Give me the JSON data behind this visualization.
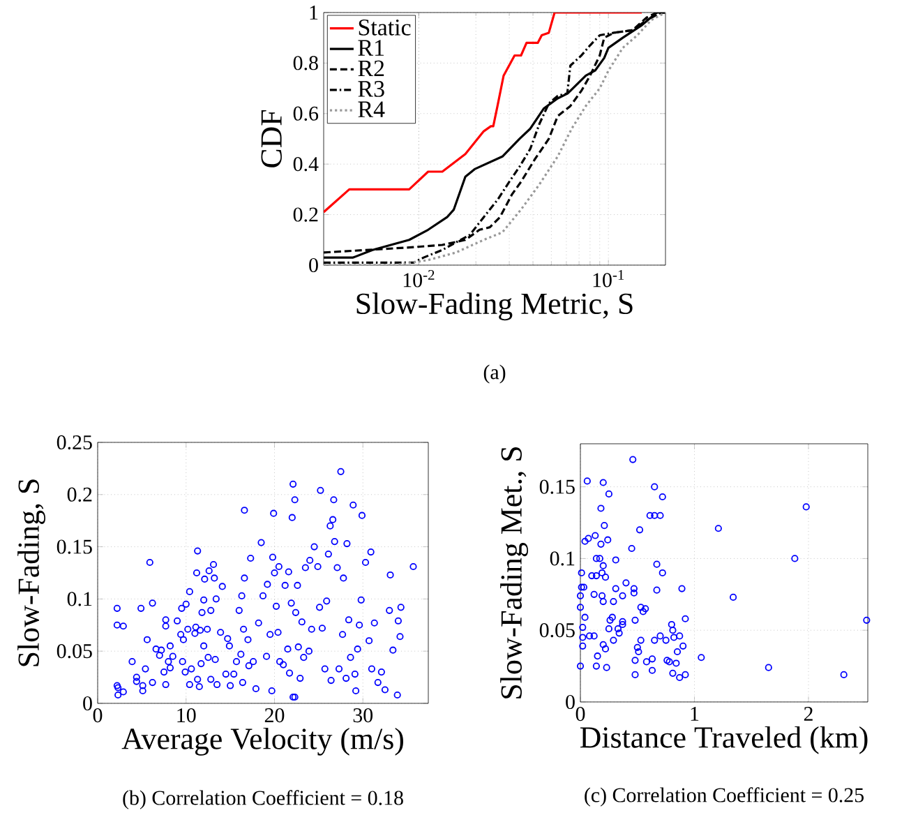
{
  "chart_data": [
    {
      "type": "line",
      "xlabel": "Slow-Fading Metric, S",
      "ylabel": "CDF",
      "log": "x",
      "xlim": [
        0.00315,
        0.2
      ],
      "ylim": [
        0,
        1
      ],
      "xticks": [
        {
          "value": 0.01,
          "label": "10$^{-2}$"
        },
        {
          "value": 0.1,
          "label": "10$^{-1}$"
        }
      ],
      "yticks": [
        0,
        0.2,
        0.4,
        0.6,
        0.8,
        1
      ],
      "grid": true,
      "legend": "top left",
      "annotations": [
        "(a)"
      ],
      "series": [
        {
          "name": "Static",
          "color": "#ff0000",
          "line_style": "solid",
          "x": [
            0.00315,
            0.0043,
            0.0089,
            0.0112,
            0.0133,
            0.0176,
            0.022,
            0.024,
            0.0247,
            0.026,
            0.028,
            0.032,
            0.0346,
            0.037,
            0.0424,
            0.0445,
            0.0485,
            0.052,
            0.15
          ],
          "values": [
            0.21,
            0.3,
            0.3,
            0.37,
            0.37,
            0.44,
            0.53,
            0.55,
            0.55,
            0.63,
            0.75,
            0.83,
            0.83,
            0.88,
            0.88,
            0.91,
            0.92,
            1,
            1
          ]
        },
        {
          "name": "R1",
          "color": "#000000",
          "line_style": "solid",
          "x": [
            0.00315,
            0.0045,
            0.0057,
            0.0089,
            0.0112,
            0.0141,
            0.0153,
            0.0176,
            0.0197,
            0.0276,
            0.034,
            0.0387,
            0.0456,
            0.054,
            0.061,
            0.076,
            0.085,
            0.095,
            0.1,
            0.119,
            0.15,
            0.18,
            0.2
          ],
          "values": [
            0.03,
            0.03,
            0.06,
            0.1,
            0.14,
            0.19,
            0.22,
            0.35,
            0.38,
            0.43,
            0.5,
            0.54,
            0.62,
            0.66,
            0.68,
            0.75,
            0.77,
            0.82,
            0.86,
            0.9,
            0.95,
            1,
            1
          ]
        },
        {
          "name": "R2",
          "color": "#000000",
          "line_style": "dashed",
          "x": [
            0.00315,
            0.0089,
            0.0133,
            0.0176,
            0.0209,
            0.0237,
            0.0268,
            0.031,
            0.0346,
            0.041,
            0.0485,
            0.054,
            0.063,
            0.072,
            0.08,
            0.09,
            0.095,
            0.107,
            0.134,
            0.159,
            0.18,
            0.2
          ],
          "values": [
            0.05,
            0.07,
            0.08,
            0.1,
            0.14,
            0.15,
            0.19,
            0.28,
            0.33,
            0.42,
            0.5,
            0.59,
            0.63,
            0.69,
            0.75,
            0.83,
            0.9,
            0.92,
            0.93,
            0.98,
            1,
            1
          ]
        },
        {
          "name": "R3",
          "color": "#000000",
          "line_style": "dashdot",
          "x": [
            0.00315,
            0.0094,
            0.0106,
            0.0133,
            0.0157,
            0.0186,
            0.022,
            0.0261,
            0.03,
            0.034,
            0.0387,
            0.0433,
            0.0485,
            0.054,
            0.0607,
            0.063,
            0.072,
            0.08,
            0.09,
            0.107,
            0.134,
            0.159,
            0.19,
            0.2
          ],
          "values": [
            0.01,
            0.01,
            0.03,
            0.06,
            0.09,
            0.12,
            0.19,
            0.26,
            0.33,
            0.39,
            0.46,
            0.56,
            0.64,
            0.67,
            0.68,
            0.79,
            0.83,
            0.87,
            0.91,
            0.92,
            0.93,
            0.97,
            1,
            1
          ]
        },
        {
          "name": "R4",
          "color": "#999999",
          "line_style": "dotted",
          "x": [
            0.00315,
            0.0075,
            0.0112,
            0.0157,
            0.022,
            0.0276,
            0.0346,
            0.0433,
            0.054,
            0.064,
            0.076,
            0.09,
            0.1,
            0.119,
            0.142,
            0.168,
            0.2
          ],
          "values": [
            0,
            0,
            0.02,
            0.05,
            0.1,
            0.13,
            0.22,
            0.32,
            0.43,
            0.54,
            0.63,
            0.7,
            0.77,
            0.86,
            0.91,
            0.97,
            1
          ]
        }
      ]
    },
    {
      "type": "scatter",
      "xlabel": "Average Velocity (m/s)",
      "ylabel": "Slow-Fading, S",
      "xlim": [
        0,
        37.4
      ],
      "ylim": [
        0,
        0.25
      ],
      "xticks": [
        0,
        10,
        20,
        30
      ],
      "yticks": [
        0,
        0.05,
        0.1,
        0.15,
        0.2,
        0.25
      ],
      "grid": true,
      "marker": "circle",
      "color": "#0000ff",
      "annotations": [
        "(b) Correlation Coefficient = 0.18"
      ],
      "x": [
        2.2,
        2.2,
        2.9,
        2.2,
        2.3,
        2.3,
        2.9,
        3.9,
        4.4,
        4.4,
        4.9,
        5.1,
        5.1,
        5.4,
        5.6,
        5.9,
        6.2,
        6.2,
        6.6,
        7.0,
        7.2,
        7.7,
        7.7,
        7.5,
        7.7,
        8.0,
        8.2,
        8.2,
        8.5,
        9.0,
        9.4,
        9.5,
        9.7,
        9.6,
        9.9,
        10.0,
        10.2,
        10.4,
        10.4,
        10.6,
        11.0,
        11.1,
        11.2,
        11.3,
        11.3,
        11.5,
        11.6,
        11.7,
        11.8,
        12.0,
        12.0,
        12.1,
        12.4,
        12.5,
        12.6,
        12.8,
        12.8,
        13.1,
        13.2,
        13.3,
        13.4,
        13.5,
        13.9,
        14.1,
        14.5,
        14.7,
        14.9,
        15.0,
        15.4,
        15.7,
        16.0,
        16.2,
        16.3,
        16.4,
        16.5,
        16.6,
        16.6,
        17.0,
        17.1,
        17.3,
        17.6,
        17.9,
        18.2,
        18.5,
        18.7,
        19.1,
        19.2,
        19.5,
        19.7,
        19.8,
        19.9,
        20.0,
        20.2,
        20.4,
        20.5,
        20.6,
        21.0,
        21.2,
        21.5,
        21.6,
        21.7,
        22.1,
        21.9,
        22.3,
        22.0,
        22.1,
        22.3,
        22.4,
        22.6,
        22.7,
        22.9,
        23.1,
        23.3,
        23.5,
        23.9,
        24.0,
        24.2,
        24.5,
        25.2,
        24.9,
        25.1,
        25.4,
        25.7,
        25.9,
        26.1,
        26.3,
        26.4,
        26.6,
        26.7,
        26.8,
        27.1,
        27.5,
        27.3,
        27.7,
        27.8,
        28.1,
        28.2,
        28.4,
        28.6,
        28.9,
        29.1,
        29.2,
        29.4,
        29.6,
        29.8,
        29.9,
        30.3,
        30.7,
        30.9,
        31.0,
        31.3,
        31.7,
        32.1,
        32.5,
        33.0,
        33.1,
        33.4,
        33.9,
        34.0,
        34.3,
        34.2,
        35.7
      ],
      "values": [
        0.091,
        0.075,
        0.074,
        0.017,
        0.015,
        0.008,
        0.011,
        0.04,
        0.025,
        0.021,
        0.091,
        0.017,
        0.012,
        0.033,
        0.061,
        0.135,
        0.096,
        0.02,
        0.052,
        0.046,
        0.051,
        0.08,
        0.074,
        0.03,
        0.018,
        0.04,
        0.055,
        0.034,
        0.045,
        0.079,
        0.066,
        0.091,
        0.061,
        0.04,
        0.03,
        0.095,
        0.071,
        0.107,
        0.018,
        0.033,
        0.067,
        0.073,
        0.125,
        0.146,
        0.023,
        0.016,
        0.07,
        0.038,
        0.087,
        0.099,
        0.055,
        0.119,
        0.071,
        0.044,
        0.127,
        0.089,
        0.023,
        0.133,
        0.12,
        0.042,
        0.1,
        0.018,
        0.068,
        0.112,
        0.028,
        0.062,
        0.055,
        0.017,
        0.028,
        0.04,
        0.089,
        0.047,
        0.103,
        0.02,
        0.071,
        0.185,
        0.12,
        0.061,
        0.036,
        0.139,
        0.04,
        0.014,
        0.077,
        0.154,
        0.103,
        0.045,
        0.114,
        0.066,
        0.012,
        0.14,
        0.182,
        0.125,
        0.093,
        0.068,
        0.131,
        0.04,
        0.037,
        0.113,
        0.052,
        0.126,
        0.029,
        0.21,
        0.096,
        0.195,
        0.178,
        0.006,
        0.006,
        0.087,
        0.113,
        0.054,
        0.024,
        0.078,
        0.044,
        0.13,
        0.05,
        0.137,
        0.071,
        0.15,
        0.204,
        0.131,
        0.092,
        0.072,
        0.033,
        0.098,
        0.143,
        0.17,
        0.022,
        0.176,
        0.195,
        0.155,
        0.13,
        0.222,
        0.033,
        0.066,
        0.12,
        0.024,
        0.153,
        0.08,
        0.044,
        0.19,
        0.028,
        0.012,
        0.052,
        0.075,
        0.099,
        0.18,
        0.135,
        0.06,
        0.145,
        0.033,
        0.077,
        0.02,
        0.03,
        0.013,
        0.089,
        0.123,
        0.051,
        0.008,
        0.079,
        0.092,
        0.064,
        0.131
      ]
    },
    {
      "type": "scatter",
      "xlabel": "Distance Traveled (km)",
      "ylabel": "Slow-Fading Met., S",
      "xlim": [
        0,
        2.52
      ],
      "ylim": [
        0,
        0.18
      ],
      "xticks": [
        0,
        1,
        2
      ],
      "yticks": [
        0,
        0.05,
        0.1,
        0.15
      ],
      "grid": true,
      "marker": "circle",
      "color": "#0000ff",
      "annotations": [
        "(c) Correlation Coefficient = 0.25"
      ],
      "x": [
        0.46,
        0.06,
        0.2,
        0.25,
        0.65,
        0.72,
        0.18,
        0.61,
        0.65,
        0.7,
        0.52,
        0.21,
        0.04,
        0.07,
        0.13,
        0.18,
        0.24,
        0.45,
        0.14,
        0.17,
        0.31,
        0.01,
        0.1,
        0.14,
        0.19,
        0.22,
        0.2,
        0.67,
        0.72,
        0.01,
        0.03,
        0.12,
        0.19,
        0.2,
        0.29,
        0.31,
        0.4,
        0.37,
        0.47,
        0.47,
        0.67,
        0.89,
        0.0,
        0.0,
        0.04,
        0.02,
        0.02,
        0.02,
        0.0,
        0.08,
        0.12,
        0.15,
        0.14,
        0.23,
        0.22,
        0.2,
        0.25,
        0.26,
        0.28,
        0.29,
        0.33,
        0.34,
        0.37,
        0.37,
        0.48,
        0.53,
        0.55,
        0.57,
        0.53,
        0.5,
        0.51,
        0.48,
        0.48,
        0.58,
        0.63,
        0.63,
        0.65,
        0.7,
        0.75,
        0.76,
        0.78,
        0.8,
        0.81,
        0.82,
        0.81,
        0.84,
        0.85,
        0.87,
        0.87,
        0.9,
        0.92,
        0.92,
        1.06,
        1.21,
        1.34,
        1.88,
        1.98,
        1.65,
        2.31,
        2.51
      ],
      "values": [
        0.169,
        0.154,
        0.153,
        0.145,
        0.15,
        0.143,
        0.135,
        0.13,
        0.13,
        0.13,
        0.12,
        0.123,
        0.112,
        0.114,
        0.116,
        0.11,
        0.113,
        0.107,
        0.1,
        0.1,
        0.099,
        0.09,
        0.088,
        0.088,
        0.09,
        0.087,
        0.095,
        0.096,
        0.09,
        0.08,
        0.08,
        0.075,
        0.074,
        0.07,
        0.07,
        0.079,
        0.083,
        0.074,
        0.079,
        0.076,
        0.078,
        0.079,
        0.074,
        0.066,
        0.059,
        0.052,
        0.045,
        0.039,
        0.025,
        0.046,
        0.046,
        0.032,
        0.025,
        0.024,
        0.037,
        0.04,
        0.051,
        0.057,
        0.059,
        0.043,
        0.051,
        0.048,
        0.056,
        0.054,
        0.057,
        0.066,
        0.063,
        0.065,
        0.043,
        0.038,
        0.035,
        0.029,
        0.019,
        0.028,
        0.03,
        0.022,
        0.043,
        0.046,
        0.043,
        0.029,
        0.028,
        0.054,
        0.05,
        0.045,
        0.02,
        0.027,
        0.035,
        0.017,
        0.046,
        0.039,
        0.058,
        0.019,
        0.031,
        0.121,
        0.073,
        0.1,
        0.136,
        0.024,
        0.019,
        0.057
      ]
    }
  ]
}
